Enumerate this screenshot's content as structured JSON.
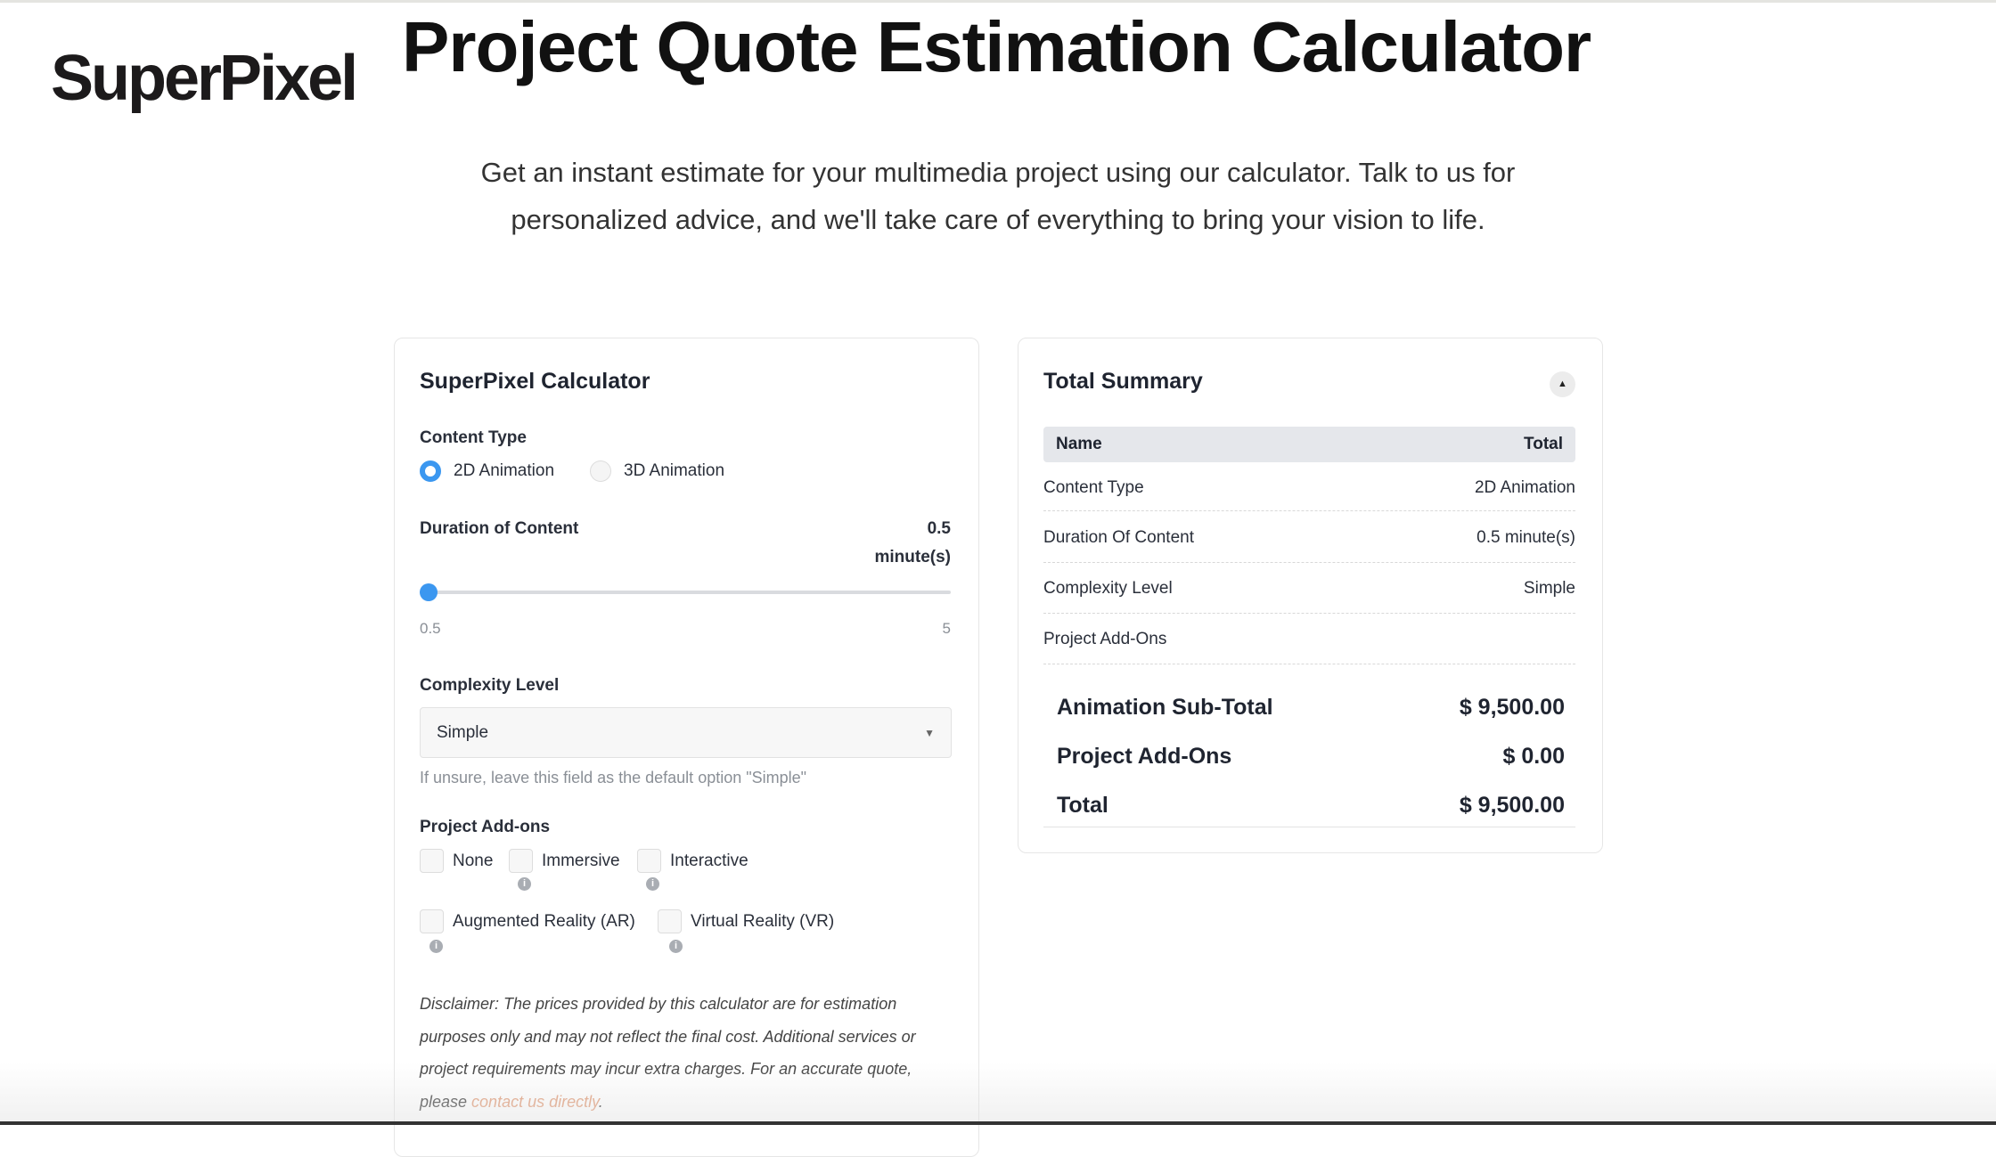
{
  "brand": {
    "logo": "SuperPixel"
  },
  "header": {
    "title": "Project Quote Estimation Calculator",
    "subtitle_line1": "Get an instant estimate for your multimedia project using our calculator. Talk to us for",
    "subtitle_line2": "personalized advice, and we'll take care of everything to bring your vision to life."
  },
  "calculator": {
    "title": "SuperPixel Calculator",
    "content_type": {
      "label": "Content Type",
      "options": [
        "2D Animation",
        "3D Animation"
      ],
      "selected": "2D Animation"
    },
    "duration": {
      "label": "Duration of Content",
      "value": "0.5",
      "unit": "minute(s)",
      "min": "0.5",
      "max": "5",
      "current": 0.5
    },
    "complexity": {
      "label": "Complexity Level",
      "value": "Simple",
      "help": "If unsure, leave this field as the default option \"Simple\""
    },
    "addons": {
      "label": "Project Add-ons",
      "items": [
        "None",
        "Immersive",
        "Interactive",
        "Augmented Reality (AR)",
        "Virtual Reality (VR)"
      ]
    },
    "disclaimer": {
      "line1": "Disclaimer: The prices provided by this calculator are for estimation",
      "line2": "purposes only and may not reflect the final cost. Additional services or",
      "line3": "project requirements may incur extra charges. For an accurate quote,",
      "line4_prefix": "please ",
      "link": "contact us directly",
      "line4_suffix": "."
    }
  },
  "summary": {
    "title": "Total Summary",
    "collapse_icon": "caret-up-icon",
    "headers": [
      "Name",
      "Total"
    ],
    "rows": [
      {
        "name": "Content Type",
        "value": "2D Animation"
      },
      {
        "name": "Duration Of Content",
        "value": "0.5 minute(s)"
      },
      {
        "name": "Complexity Level",
        "value": "Simple"
      },
      {
        "name": "Project Add-Ons",
        "value": ""
      }
    ],
    "totals": [
      {
        "name": "Animation Sub-Total",
        "value": "$ 9,500.00"
      },
      {
        "name": "Project Add-Ons",
        "value": "$ 0.00"
      },
      {
        "name": "Total",
        "value": "$ 9,500.00"
      }
    ]
  },
  "colors": {
    "accent": "#3b97f0",
    "link": "#e3a07e",
    "table_header": "#e5e7eb"
  }
}
